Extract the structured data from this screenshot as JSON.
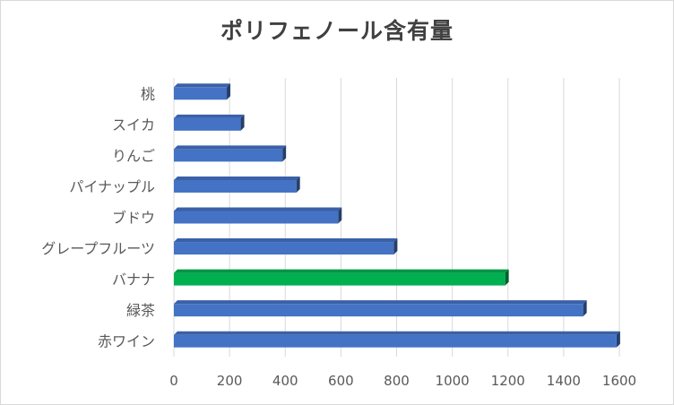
{
  "chart_data": {
    "type": "bar",
    "orientation": "horizontal",
    "title": "ポリフェノール含有量",
    "xlabel": "",
    "ylabel": "",
    "categories": [
      "赤ワイン",
      "緑茶",
      "バナナ",
      "グレープフルーツ",
      "ブドウ",
      "パイナップル",
      "りんご",
      "スイカ",
      "桃"
    ],
    "values": [
      1590,
      1470,
      1190,
      790,
      590,
      440,
      390,
      240,
      190
    ],
    "highlight_category": "バナナ",
    "colors": {
      "default": "#4472c4",
      "highlight": "#00b050",
      "grid": "#d9d9d9"
    },
    "xlim": [
      0,
      1600
    ],
    "x_ticks": [
      "0",
      "200",
      "400",
      "600",
      "800",
      "1000",
      "1200",
      "1400",
      "1600"
    ],
    "grid": true,
    "legend": "none"
  }
}
